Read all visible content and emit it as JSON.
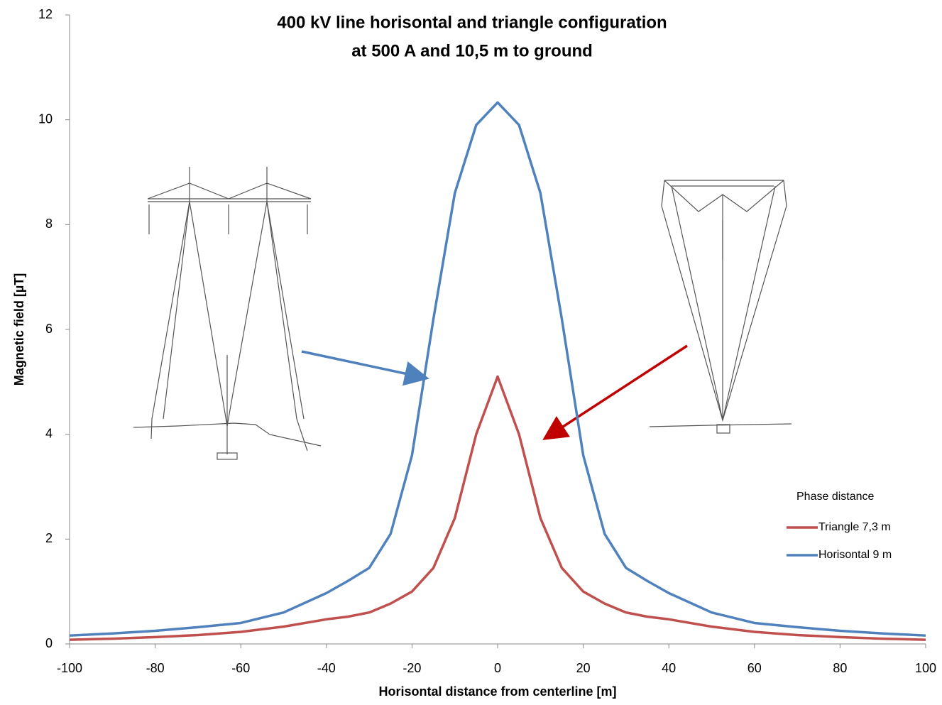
{
  "chart_data": {
    "type": "line",
    "title": [
      "400 kV line horisontal and triangle configuration",
      "at 500 A and 10,5 m to ground"
    ],
    "x_label": "Horisontal distance from centerline [m]",
    "y_label": "Magnetic field [µT]",
    "legend_title": "Phase distance",
    "x": [
      -100,
      -90,
      -80,
      -70,
      -60,
      -50,
      -40,
      -35,
      -30,
      -25,
      -20,
      -15,
      -10,
      -5,
      0,
      5,
      10,
      15,
      20,
      25,
      30,
      35,
      40,
      50,
      60,
      70,
      80,
      90,
      100
    ],
    "series": [
      {
        "name": "Triangle 7,3 m",
        "color": "#c0504d",
        "values": [
          0.08,
          0.1,
          0.13,
          0.17,
          0.23,
          0.33,
          0.47,
          0.52,
          0.6,
          0.77,
          1.0,
          1.45,
          2.4,
          4.0,
          5.1,
          4.0,
          2.4,
          1.45,
          1.0,
          0.77,
          0.6,
          0.52,
          0.47,
          0.33,
          0.23,
          0.17,
          0.13,
          0.1,
          0.08
        ]
      },
      {
        "name": "Horisontal 9 m",
        "color": "#4f81bd",
        "values": [
          0.16,
          0.2,
          0.25,
          0.32,
          0.4,
          0.6,
          0.97,
          1.2,
          1.45,
          2.1,
          3.6,
          6.2,
          8.6,
          9.9,
          10.33,
          9.9,
          8.6,
          6.2,
          3.6,
          2.1,
          1.45,
          1.2,
          0.97,
          0.6,
          0.4,
          0.32,
          0.25,
          0.2,
          0.16
        ]
      }
    ],
    "xlim": [
      -100,
      100
    ],
    "xticks": [
      -100,
      -80,
      -60,
      -40,
      -20,
      0,
      20,
      40,
      60,
      80,
      100
    ],
    "ylim": [
      0,
      12
    ],
    "yticks": [
      0,
      2,
      4,
      6,
      8,
      10,
      12
    ],
    "grid": false
  }
}
